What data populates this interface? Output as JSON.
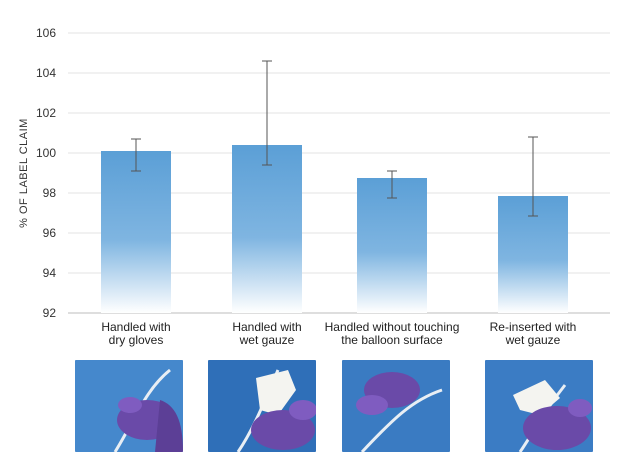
{
  "chart_data": {
    "type": "bar",
    "ylabel": "% OF LABEL CLAIM",
    "ylim": [
      92,
      106
    ],
    "yticks": [
      92,
      94,
      96,
      98,
      100,
      102,
      104,
      106
    ],
    "categories": [
      [
        "Handled with",
        "dry gloves"
      ],
      [
        "Handled with",
        "wet gauze"
      ],
      [
        "Handled without touching",
        "the balloon surface"
      ],
      [
        "Re-inserted with",
        "wet gauze"
      ]
    ],
    "values": [
      100.1,
      100.4,
      98.75,
      97.85
    ],
    "error_low": [
      99.1,
      99.4,
      97.75,
      96.85
    ],
    "error_high": [
      100.7,
      104.6,
      99.1,
      100.8
    ],
    "grid": true,
    "bar_color": "#5b9fd6"
  },
  "photos": [
    {
      "icon": "catheter-gloved-hand-photo"
    },
    {
      "icon": "catheter-wet-gauze-photo"
    },
    {
      "icon": "catheter-no-touch-photo"
    },
    {
      "icon": "catheter-reinserted-gauze-photo"
    }
  ]
}
